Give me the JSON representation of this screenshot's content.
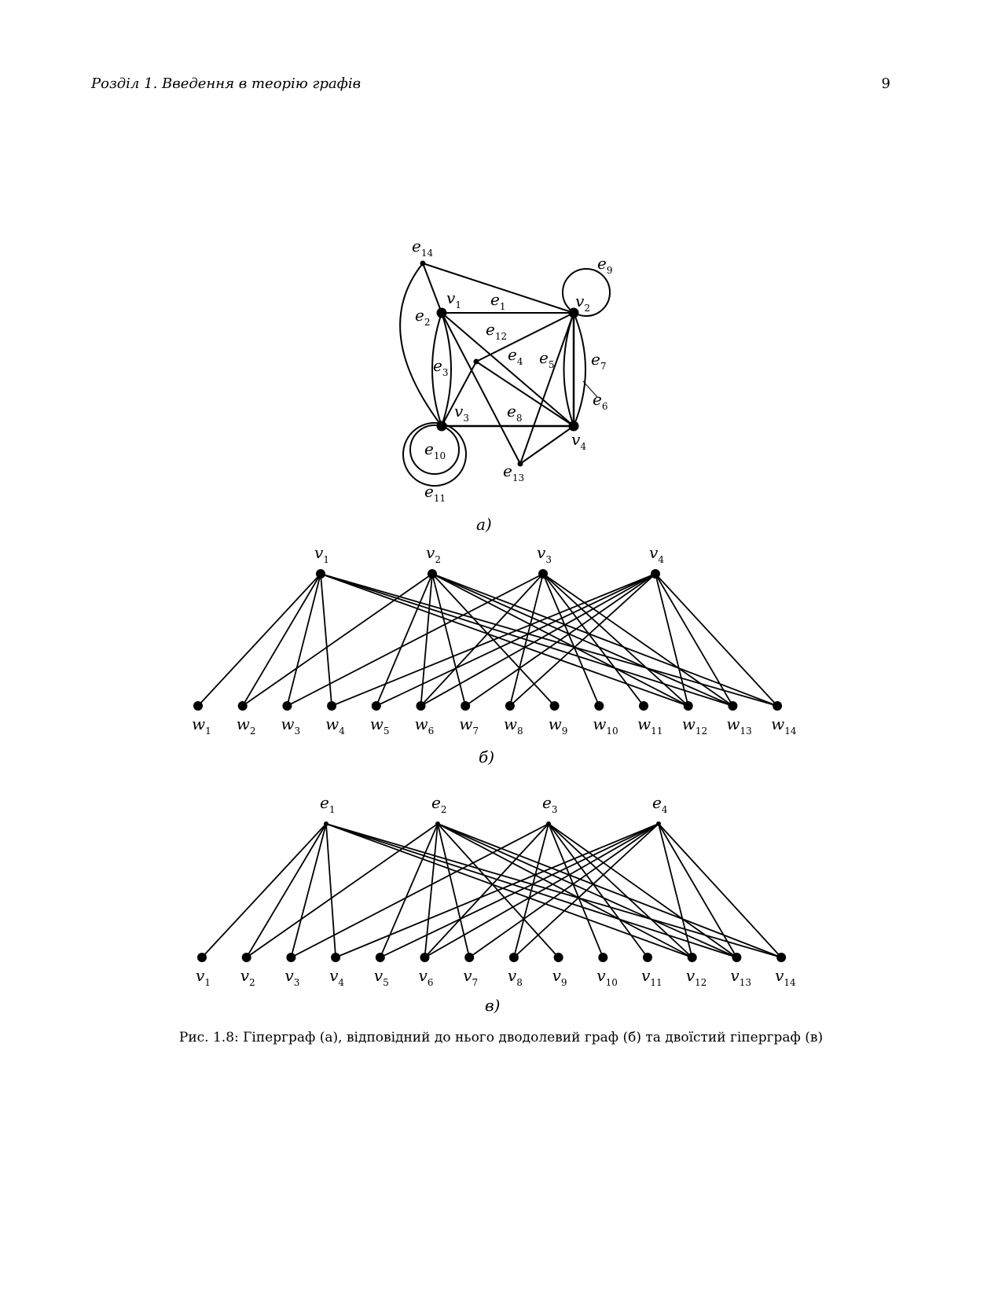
{
  "header": {
    "section_title": "Розділ 1.  Введення в теорію графів",
    "page_number": "9"
  },
  "panels": {
    "a": "а)",
    "b": "б)",
    "c": "в)"
  },
  "caption": "Рис. 1.8: Гіперграф (а), відповідний до нього дводолевий граф (б) та двоїстий гіперграф (в)",
  "graph_a": {
    "vertices": [
      {
        "base": "v",
        "sub": "1"
      },
      {
        "base": "v",
        "sub": "2"
      },
      {
        "base": "v",
        "sub": "3"
      },
      {
        "base": "v",
        "sub": "4"
      }
    ],
    "edges": [
      {
        "base": "e",
        "sub": "1"
      },
      {
        "base": "e",
        "sub": "2"
      },
      {
        "base": "e",
        "sub": "3"
      },
      {
        "base": "e",
        "sub": "4"
      },
      {
        "base": "e",
        "sub": "5"
      },
      {
        "base": "e",
        "sub": "6"
      },
      {
        "base": "e",
        "sub": "7"
      },
      {
        "base": "e",
        "sub": "8"
      },
      {
        "base": "e",
        "sub": "9"
      },
      {
        "base": "e",
        "sub": "10"
      },
      {
        "base": "e",
        "sub": "11"
      },
      {
        "base": "e",
        "sub": "12"
      },
      {
        "base": "e",
        "sub": "13"
      },
      {
        "base": "e",
        "sub": "14"
      }
    ]
  },
  "graph_b": {
    "top": [
      {
        "base": "v",
        "sub": "1"
      },
      {
        "base": "v",
        "sub": "2"
      },
      {
        "base": "v",
        "sub": "3"
      },
      {
        "base": "v",
        "sub": "4"
      }
    ],
    "bottom": [
      {
        "base": "w",
        "sub": "1"
      },
      {
        "base": "w",
        "sub": "2"
      },
      {
        "base": "w",
        "sub": "3"
      },
      {
        "base": "w",
        "sub": "4"
      },
      {
        "base": "w",
        "sub": "5"
      },
      {
        "base": "w",
        "sub": "6"
      },
      {
        "base": "w",
        "sub": "7"
      },
      {
        "base": "w",
        "sub": "8"
      },
      {
        "base": "w",
        "sub": "9"
      },
      {
        "base": "w",
        "sub": "10"
      },
      {
        "base": "w",
        "sub": "11"
      },
      {
        "base": "w",
        "sub": "12"
      },
      {
        "base": "w",
        "sub": "13"
      },
      {
        "base": "w",
        "sub": "14"
      }
    ],
    "links": [
      [
        0,
        0
      ],
      [
        0,
        1
      ],
      [
        0,
        2
      ],
      [
        0,
        3
      ],
      [
        0,
        11
      ],
      [
        0,
        12
      ],
      [
        0,
        13
      ],
      [
        1,
        1
      ],
      [
        1,
        4
      ],
      [
        1,
        5
      ],
      [
        1,
        6
      ],
      [
        1,
        8
      ],
      [
        1,
        11
      ],
      [
        1,
        12
      ],
      [
        1,
        13
      ],
      [
        2,
        2
      ],
      [
        2,
        5
      ],
      [
        2,
        7
      ],
      [
        2,
        9
      ],
      [
        2,
        10
      ],
      [
        2,
        11
      ],
      [
        2,
        12
      ],
      [
        3,
        3
      ],
      [
        3,
        4
      ],
      [
        3,
        5
      ],
      [
        3,
        6
      ],
      [
        3,
        7
      ],
      [
        3,
        11
      ],
      [
        3,
        12
      ],
      [
        3,
        13
      ]
    ]
  },
  "graph_c": {
    "top": [
      {
        "base": "e",
        "sub": "1"
      },
      {
        "base": "e",
        "sub": "2"
      },
      {
        "base": "e",
        "sub": "3"
      },
      {
        "base": "e",
        "sub": "4"
      }
    ],
    "bottom": [
      {
        "base": "v",
        "sub": "1"
      },
      {
        "base": "v",
        "sub": "2"
      },
      {
        "base": "v",
        "sub": "3"
      },
      {
        "base": "v",
        "sub": "4"
      },
      {
        "base": "v",
        "sub": "5"
      },
      {
        "base": "v",
        "sub": "6"
      },
      {
        "base": "v",
        "sub": "7"
      },
      {
        "base": "v",
        "sub": "8"
      },
      {
        "base": "v",
        "sub": "9"
      },
      {
        "base": "v",
        "sub": "10"
      },
      {
        "base": "v",
        "sub": "11"
      },
      {
        "base": "v",
        "sub": "12"
      },
      {
        "base": "v",
        "sub": "13"
      },
      {
        "base": "v",
        "sub": "14"
      }
    ],
    "links": [
      [
        0,
        0
      ],
      [
        0,
        1
      ],
      [
        0,
        2
      ],
      [
        0,
        3
      ],
      [
        0,
        11
      ],
      [
        0,
        12
      ],
      [
        0,
        13
      ],
      [
        1,
        1
      ],
      [
        1,
        4
      ],
      [
        1,
        5
      ],
      [
        1,
        6
      ],
      [
        1,
        8
      ],
      [
        1,
        11
      ],
      [
        1,
        12
      ],
      [
        1,
        13
      ],
      [
        2,
        2
      ],
      [
        2,
        5
      ],
      [
        2,
        7
      ],
      [
        2,
        9
      ],
      [
        2,
        10
      ],
      [
        2,
        11
      ],
      [
        2,
        12
      ],
      [
        3,
        3
      ],
      [
        3,
        4
      ],
      [
        3,
        5
      ],
      [
        3,
        6
      ],
      [
        3,
        7
      ],
      [
        3,
        11
      ],
      [
        3,
        12
      ],
      [
        3,
        13
      ]
    ]
  }
}
